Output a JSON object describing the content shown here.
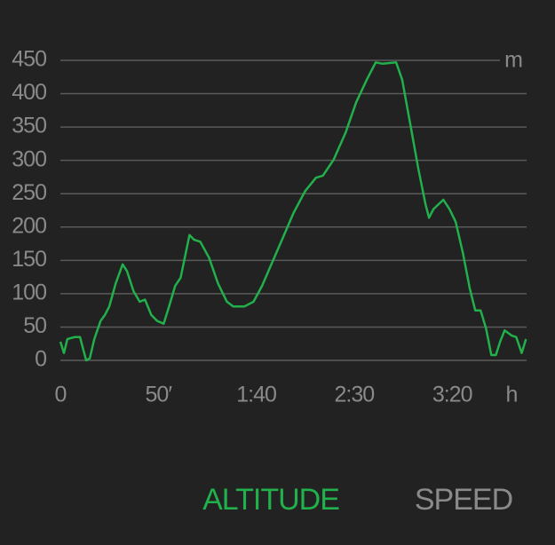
{
  "chart_data": {
    "type": "line",
    "color": "#21b04b",
    "grid": true,
    "y_unit": "m",
    "x_unit": "h",
    "xlim": [
      0,
      238
    ],
    "ylim": [
      0,
      450
    ],
    "xticks": [
      0,
      {
        "value": 50,
        "label": "50′"
      },
      {
        "value": 100,
        "label": "1:40"
      },
      {
        "value": 150,
        "label": "2:30"
      },
      {
        "value": 200,
        "label": "3:20"
      }
    ],
    "yticks": [
      0,
      50,
      100,
      150,
      200,
      250,
      300,
      350,
      400,
      450
    ],
    "x": [
      0,
      1.8,
      3.6,
      7.3,
      10,
      11.8,
      13.2,
      15,
      17.3,
      20.5,
      22.7,
      25,
      28.2,
      31.8,
      34,
      37.3,
      40.5,
      43.2,
      46.4,
      49.5,
      52.7,
      55.5,
      58.6,
      61.4,
      65.9,
      68.2,
      71.4,
      75.9,
      80.5,
      85,
      88.2,
      94,
      98.6,
      103,
      107.7,
      113.6,
      119,
      125,
      130.5,
      134,
      139.5,
      145.5,
      151,
      156.4,
      161,
      164.5,
      171.4,
      174.5,
      179,
      182.7,
      186.4,
      188.2,
      190.5,
      195.5,
      198.6,
      201.8,
      205.5,
      209,
      211.8,
      214.5,
      217.3,
      220,
      222.3,
      224.5,
      226.8,
      230.5,
      232.7,
      235.5,
      237.7
    ],
    "values": [
      28,
      11,
      32,
      35,
      35,
      15,
      0,
      3,
      32,
      59,
      68,
      81,
      115,
      144,
      134,
      104,
      88,
      91,
      68,
      59,
      55,
      81,
      112,
      124,
      188,
      181,
      178,
      154,
      115,
      88,
      81,
      81,
      88,
      112,
      144,
      184,
      221,
      254,
      274,
      277,
      301,
      341,
      387,
      421,
      447,
      445,
      447,
      421,
      348,
      288,
      234,
      214,
      227,
      241,
      227,
      208,
      161,
      108,
      75,
      75,
      48,
      8,
      8,
      28,
      45,
      37,
      35,
      11,
      32
    ]
  },
  "tabs": [
    {
      "label": "ALTITUDE",
      "active": true,
      "color": "#21b04b"
    },
    {
      "label": "SPEED",
      "active": false,
      "color": "#8a8a8a"
    }
  ]
}
